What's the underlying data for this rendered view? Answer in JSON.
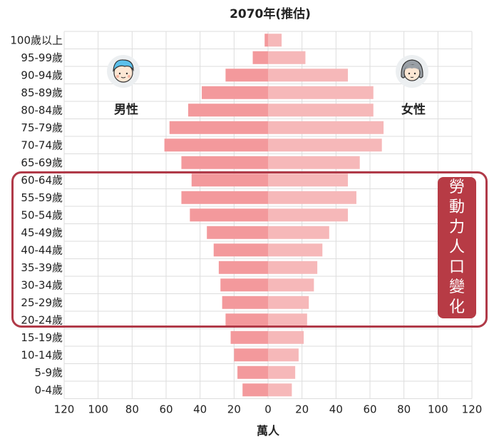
{
  "chart_data": {
    "type": "bar",
    "title": "2070年(推估)",
    "xlabel": "萬人",
    "xlim": [
      -120,
      120
    ],
    "xticks": [
      "120",
      "100",
      "80",
      "60",
      "40",
      "20",
      "0",
      "20",
      "40",
      "60",
      "80",
      "100",
      "120"
    ],
    "categories": [
      "100歲以上",
      "95-99歲",
      "90-94歲",
      "85-89歲",
      "80-84歲",
      "75-79歲",
      "70-74歲",
      "65-69歲",
      "60-64歲",
      "55-59歲",
      "50-54歲",
      "45-49歲",
      "40-44歲",
      "35-39歲",
      "30-34歲",
      "25-29歲",
      "20-24歲",
      "15-19歲",
      "10-14歲",
      "5-9歲",
      "0-4歲"
    ],
    "series": [
      {
        "name": "男性",
        "values": [
          -2,
          -9,
          -25,
          -39,
          -47,
          -58,
          -61,
          -51,
          -45,
          -51,
          -46,
          -36,
          -32,
          -29,
          -28,
          -27,
          -25,
          -22,
          -20,
          -18,
          -15
        ]
      },
      {
        "name": "女性",
        "values": [
          8,
          22,
          47,
          62,
          62,
          68,
          67,
          54,
          47,
          52,
          47,
          36,
          32,
          29,
          27,
          24,
          23,
          21,
          18,
          16,
          14
        ]
      }
    ],
    "colors": {
      "male": "#f3999c",
      "female": "#f6b8b9",
      "grid": "#dddddd",
      "highlight": "#b03a48"
    },
    "grid": true
  },
  "legend": {
    "male_label": "男性",
    "female_label": "女性"
  },
  "annotation": {
    "label_chars": [
      "勞",
      "動",
      "力",
      "人",
      "口",
      "變",
      "化"
    ]
  }
}
